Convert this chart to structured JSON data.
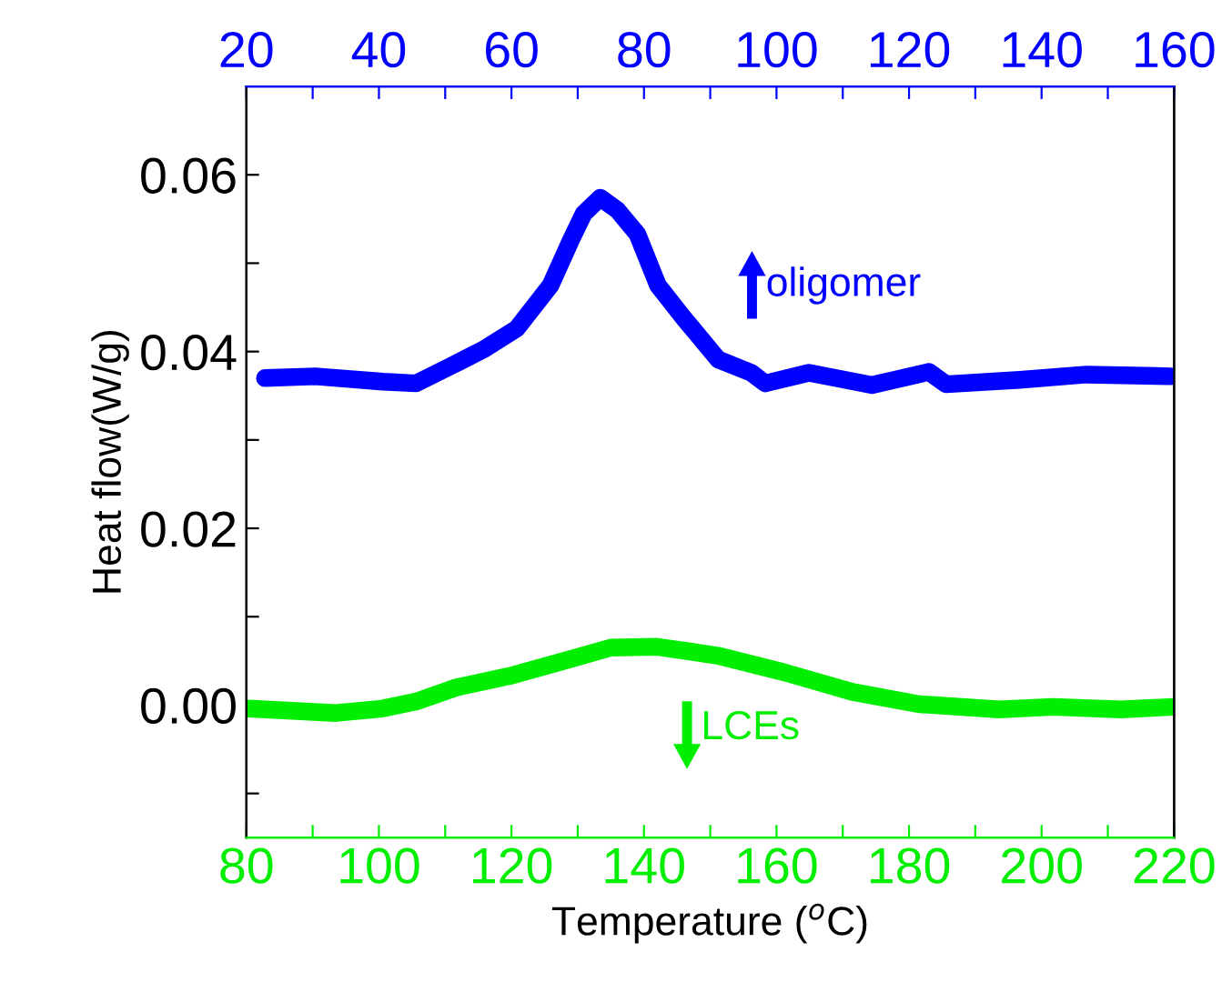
{
  "chart_data": {
    "type": "line",
    "xlabel": "Temperature ($^{o}$C)",
    "ylabel": "Heat flow(W/g)",
    "series": [
      {
        "name": "oligomer",
        "color": "#0000ff",
        "axis": "x2",
        "x": [
          22.8,
          30.4,
          40.6,
          45.6,
          50.7,
          55.7,
          60.8,
          65.9,
          68.9,
          70.9,
          73.4,
          76.0,
          79.0,
          82.1,
          86.1,
          91.2,
          96.2,
          98.3,
          104.9,
          114.4,
          123.0,
          125.6,
          136.7,
          146.8,
          159.5
        ],
        "values": [
          0.037,
          0.0372,
          0.0366,
          0.0364,
          0.0383,
          0.0402,
          0.0426,
          0.0475,
          0.0525,
          0.0556,
          0.0574,
          0.056,
          0.0533,
          0.0475,
          0.0437,
          0.0391,
          0.0376,
          0.0364,
          0.0376,
          0.0362,
          0.0377,
          0.0363,
          0.0368,
          0.0374,
          0.0372
        ]
      },
      {
        "name": "LCEs",
        "color": "#00ee00",
        "x": [
          80.3,
          93.5,
          100.5,
          105.6,
          111.7,
          119.8,
          128.9,
          135.0,
          142.0,
          151.1,
          161.2,
          171.4,
          181.5,
          193.6,
          201.7,
          211.9,
          219.9
        ],
        "values": [
          -0.0004,
          -0.0009,
          -0.0004,
          0.0004,
          0.002,
          0.0033,
          0.0052,
          0.0065,
          0.0066,
          0.0056,
          0.0037,
          0.0015,
          0.0001,
          -0.0005,
          -0.0002,
          -0.0005,
          -0.0002
        ]
      }
    ],
    "xlim": [
      80,
      220
    ],
    "xticks": [
      80,
      {
        "value": 90,
        "label": null
      },
      100,
      {
        "value": 110,
        "label": null
      },
      120,
      {
        "value": 130,
        "label": null
      },
      140,
      {
        "value": 150,
        "label": null
      },
      160,
      {
        "value": 170,
        "label": null
      },
      180,
      {
        "value": 190,
        "label": null
      },
      200,
      {
        "value": 210,
        "label": null
      },
      220
    ],
    "x2lim": [
      20,
      160
    ],
    "x2ticks": [
      20,
      {
        "value": 30,
        "label": null
      },
      40,
      {
        "value": 50,
        "label": null
      },
      60,
      {
        "value": 70,
        "label": null
      },
      80,
      {
        "value": 90,
        "label": null
      },
      100,
      {
        "value": 110,
        "label": null
      },
      120,
      {
        "value": 130,
        "label": null
      },
      140,
      {
        "value": 150,
        "label": null
      },
      160
    ],
    "ylim": [
      -0.015,
      0.07
    ],
    "yticks": [
      {
        "value": -0.01,
        "label": null
      },
      {
        "value": 0,
        "label": "0.00"
      },
      {
        "value": 0.01,
        "label": null
      },
      {
        "value": 0.02,
        "label": "0.02"
      },
      {
        "value": 0.03,
        "label": null
      },
      {
        "value": 0.04,
        "label": "0.04"
      },
      {
        "value": 0.05,
        "label": null
      },
      {
        "value": 0.06,
        "label": "0.06"
      }
    ],
    "grid": false,
    "legend": "right",
    "marker": "none",
    "line_style": "solid"
  }
}
